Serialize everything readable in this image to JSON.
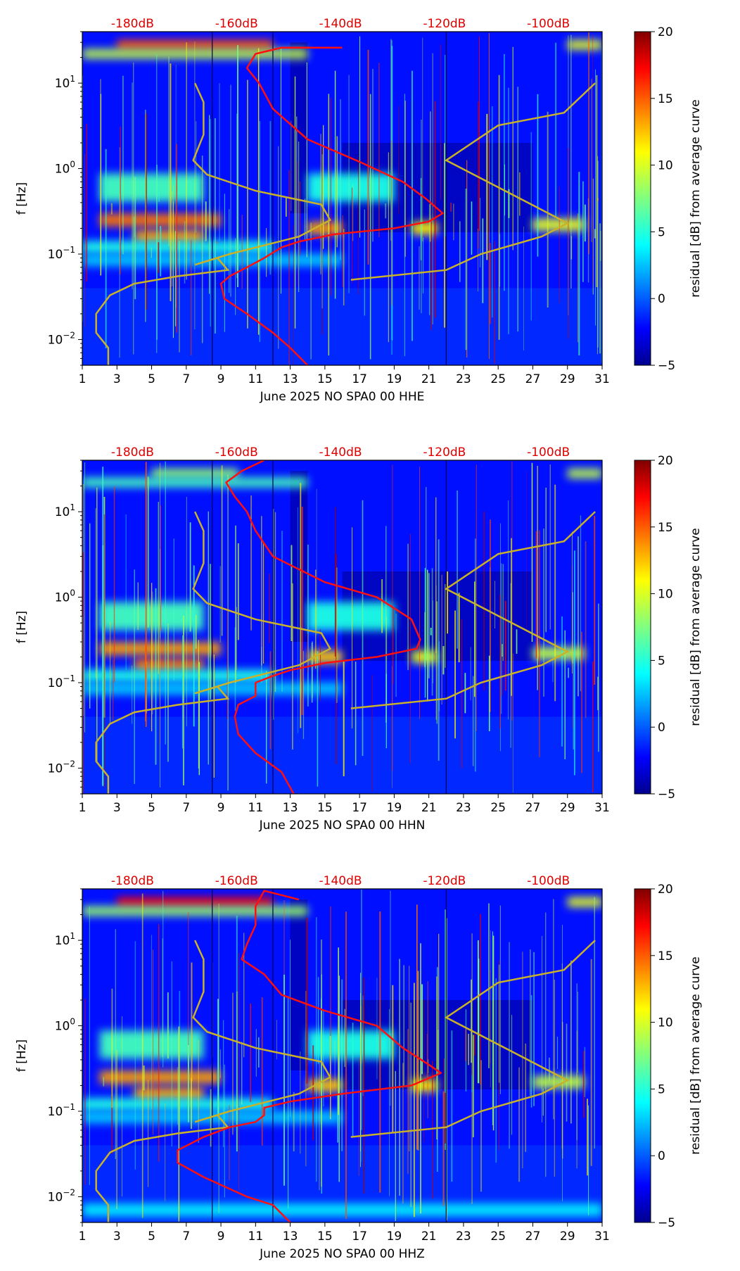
{
  "chart_data": [
    {
      "type": "heatmap",
      "title": "",
      "xlabel": "June 2025 NO SPA0 00 HHE",
      "ylabel": "f [Hz]",
      "colorbar_label": "residual [dB] from average curve",
      "colorbar_range": [
        -5,
        20
      ],
      "colorbar_ticks": [
        {
          "v": -5,
          "label": "−5"
        },
        {
          "v": 0,
          "label": "0"
        },
        {
          "v": 5,
          "label": "5"
        },
        {
          "v": 10,
          "label": "10"
        },
        {
          "v": 15,
          "label": "15"
        },
        {
          "v": 20,
          "label": "20"
        }
      ],
      "xlim": [
        1,
        31
      ],
      "x_ticks": [
        "1",
        "3",
        "5",
        "7",
        "9",
        "11",
        "13",
        "15",
        "17",
        "19",
        "21",
        "23",
        "25",
        "27",
        "29",
        "31"
      ],
      "ylim_hz": [
        0.005,
        40
      ],
      "y_ticks": [
        {
          "e": -2,
          "label": "10"
        },
        {
          "e": -1,
          "label": "10"
        },
        {
          "e": 0,
          "label": "10"
        },
        {
          "e": 1,
          "label": "10"
        }
      ],
      "db_scale": [
        "-180dB",
        "-160dB",
        "-140dB",
        "-120dB",
        "-100dB"
      ],
      "red_curve": [
        [
          16.0,
          26
        ],
        [
          12.5,
          26
        ],
        [
          11.0,
          22
        ],
        [
          10.5,
          15
        ],
        [
          11.2,
          10
        ],
        [
          12,
          5
        ],
        [
          14,
          2.2
        ],
        [
          17,
          1.2
        ],
        [
          19.5,
          0.7
        ],
        [
          20.8,
          0.45
        ],
        [
          21.8,
          0.3
        ],
        [
          21,
          0.24
        ],
        [
          19,
          0.2
        ],
        [
          15.5,
          0.17
        ],
        [
          13.5,
          0.14
        ],
        [
          12.5,
          0.12
        ],
        [
          11.5,
          0.09
        ],
        [
          10.5,
          0.07
        ],
        [
          9.5,
          0.055
        ],
        [
          9,
          0.045
        ],
        [
          9.2,
          0.03
        ],
        [
          10.5,
          0.02
        ],
        [
          12,
          0.012
        ],
        [
          13,
          0.008
        ],
        [
          14,
          0.005
        ]
      ],
      "yellow_curve": [
        [
          7.5,
          10
        ],
        [
          8.0,
          6
        ],
        [
          8.0,
          2.5
        ],
        [
          7.4,
          1.25
        ],
        [
          8.2,
          0.85
        ],
        [
          11,
          0.55
        ],
        [
          14.8,
          0.38
        ],
        [
          15.3,
          0.25
        ],
        [
          13.5,
          0.16
        ],
        [
          9.5,
          0.1
        ],
        [
          7.5,
          0.075
        ],
        [
          8.8,
          0.09
        ],
        [
          9.4,
          0.065
        ],
        [
          6.5,
          0.055
        ],
        [
          4,
          0.045
        ],
        [
          2.6,
          0.033
        ],
        [
          1.8,
          0.02
        ],
        [
          1.8,
          0.012
        ],
        [
          2.5,
          0.008
        ],
        [
          2.5,
          0.005
        ]
      ],
      "yellow_curve_2": [
        [
          16.5,
          0.05
        ],
        [
          22,
          0.065
        ],
        [
          24,
          0.1
        ],
        [
          27.5,
          0.16
        ],
        [
          29,
          0.23
        ],
        [
          22,
          1.25
        ],
        [
          25,
          3.2
        ],
        [
          28.8,
          4.5
        ],
        [
          30.6,
          10
        ]
      ],
      "bands": [
        {
          "f": 0.25,
          "x0": 2,
          "x1": 9,
          "level": 14
        },
        {
          "f": 0.2,
          "x0": 14,
          "x1": 16,
          "level": 13
        },
        {
          "f": 0.2,
          "x0": 20,
          "x1": 21.5,
          "level": 11
        },
        {
          "f": 0.22,
          "x0": 27,
          "x1": 30,
          "level": 10
        },
        {
          "f": 0.16,
          "x0": 4,
          "x1": 8,
          "level": 13
        },
        {
          "f": 0.6,
          "x0": 2,
          "x1": 8,
          "level": 6
        },
        {
          "f": 0.6,
          "x0": 14,
          "x1": 19,
          "level": 5
        },
        {
          "f": 0.12,
          "x0": 1,
          "x1": 12,
          "level": 5
        },
        {
          "f": 0.085,
          "x0": 1,
          "x1": 16,
          "level": 3
        },
        {
          "f": 28,
          "x0": 3,
          "x1": 12,
          "level": 15
        },
        {
          "f": 22,
          "x0": 1,
          "x1": 14,
          "level": 9
        },
        {
          "f": 28,
          "x0": 29,
          "x1": 31,
          "level": 10
        }
      ]
    },
    {
      "type": "heatmap",
      "title": "",
      "xlabel": "June 2025 NO SPA0 00 HHN",
      "ylabel": "f [Hz]",
      "colorbar_label": "residual [dB] from average curve",
      "colorbar_range": [
        -5,
        20
      ],
      "colorbar_ticks": [
        {
          "v": -5,
          "label": "−5"
        },
        {
          "v": 0,
          "label": "0"
        },
        {
          "v": 5,
          "label": "5"
        },
        {
          "v": 10,
          "label": "10"
        },
        {
          "v": 15,
          "label": "15"
        },
        {
          "v": 20,
          "label": "20"
        }
      ],
      "xlim": [
        1,
        31
      ],
      "x_ticks": [
        "1",
        "3",
        "5",
        "7",
        "9",
        "11",
        "13",
        "15",
        "17",
        "19",
        "21",
        "23",
        "25",
        "27",
        "29",
        "31"
      ],
      "ylim_hz": [
        0.005,
        40
      ],
      "y_ticks": [
        {
          "e": -2,
          "label": "10"
        },
        {
          "e": -1,
          "label": "10"
        },
        {
          "e": 0,
          "label": "10"
        },
        {
          "e": 1,
          "label": "10"
        }
      ],
      "db_scale": [
        "-180dB",
        "-160dB",
        "-140dB",
        "-120dB",
        "-100dB"
      ],
      "red_curve": [
        [
          11.5,
          40
        ],
        [
          10.2,
          30
        ],
        [
          9.3,
          22
        ],
        [
          9.8,
          15
        ],
        [
          10.5,
          10
        ],
        [
          11,
          6
        ],
        [
          12,
          3
        ],
        [
          15,
          1.5
        ],
        [
          18,
          1.0
        ],
        [
          20,
          0.55
        ],
        [
          20.5,
          0.32
        ],
        [
          20.3,
          0.25
        ],
        [
          18,
          0.2
        ],
        [
          15,
          0.17
        ],
        [
          13,
          0.14
        ],
        [
          12,
          0.12
        ],
        [
          11,
          0.1
        ],
        [
          11,
          0.07
        ],
        [
          10,
          0.055
        ],
        [
          9.8,
          0.04
        ],
        [
          10,
          0.025
        ],
        [
          11,
          0.015
        ],
        [
          12.5,
          0.009
        ],
        [
          13.2,
          0.005
        ]
      ],
      "yellow_curve": [
        [
          7.5,
          10
        ],
        [
          8.0,
          6
        ],
        [
          8.0,
          2.5
        ],
        [
          7.4,
          1.25
        ],
        [
          8.2,
          0.85
        ],
        [
          11,
          0.55
        ],
        [
          14.8,
          0.38
        ],
        [
          15.3,
          0.25
        ],
        [
          13.5,
          0.16
        ],
        [
          9.5,
          0.1
        ],
        [
          7.5,
          0.075
        ],
        [
          8.8,
          0.09
        ],
        [
          9.4,
          0.065
        ],
        [
          6.5,
          0.055
        ],
        [
          4,
          0.045
        ],
        [
          2.6,
          0.033
        ],
        [
          1.8,
          0.02
        ],
        [
          1.8,
          0.012
        ],
        [
          2.5,
          0.008
        ],
        [
          2.5,
          0.005
        ]
      ],
      "yellow_curve_2": [
        [
          16.5,
          0.05
        ],
        [
          22,
          0.065
        ],
        [
          24,
          0.1
        ],
        [
          27.5,
          0.16
        ],
        [
          29,
          0.23
        ],
        [
          22,
          1.25
        ],
        [
          25,
          3.2
        ],
        [
          28.8,
          4.5
        ],
        [
          30.6,
          10
        ]
      ],
      "bands": [
        {
          "f": 0.25,
          "x0": 2,
          "x1": 9,
          "level": 13
        },
        {
          "f": 0.2,
          "x0": 14,
          "x1": 16,
          "level": 12
        },
        {
          "f": 0.2,
          "x0": 20,
          "x1": 21.5,
          "level": 10
        },
        {
          "f": 0.22,
          "x0": 27,
          "x1": 30,
          "level": 9
        },
        {
          "f": 0.16,
          "x0": 4,
          "x1": 8,
          "level": 14
        },
        {
          "f": 0.6,
          "x0": 2,
          "x1": 8,
          "level": 6
        },
        {
          "f": 0.6,
          "x0": 14,
          "x1": 19,
          "level": 5
        },
        {
          "f": 0.12,
          "x0": 1,
          "x1": 12,
          "level": 5
        },
        {
          "f": 0.085,
          "x0": 1,
          "x1": 16,
          "level": 3
        },
        {
          "f": 28,
          "x0": 5,
          "x1": 10,
          "level": 8
        },
        {
          "f": 22,
          "x0": 1,
          "x1": 14,
          "level": 6
        },
        {
          "f": 28,
          "x0": 29,
          "x1": 31,
          "level": 9
        }
      ]
    },
    {
      "type": "heatmap",
      "title": "",
      "xlabel": "June 2025 NO SPA0 00 HHZ",
      "ylabel": "f [Hz]",
      "colorbar_label": "residual [dB] from average curve",
      "colorbar_range": [
        -5,
        20
      ],
      "colorbar_ticks": [
        {
          "v": -5,
          "label": "−5"
        },
        {
          "v": 0,
          "label": "0"
        },
        {
          "v": 5,
          "label": "5"
        },
        {
          "v": 10,
          "label": "10"
        },
        {
          "v": 15,
          "label": "15"
        },
        {
          "v": 20,
          "label": "20"
        }
      ],
      "xlim": [
        1,
        31
      ],
      "x_ticks": [
        "1",
        "3",
        "5",
        "7",
        "9",
        "11",
        "13",
        "15",
        "17",
        "19",
        "21",
        "23",
        "25",
        "27",
        "29",
        "31"
      ],
      "ylim_hz": [
        0.005,
        40
      ],
      "y_ticks": [
        {
          "e": -2,
          "label": "10"
        },
        {
          "e": -1,
          "label": "10"
        },
        {
          "e": 0,
          "label": "10"
        },
        {
          "e": 1,
          "label": "10"
        }
      ],
      "db_scale": [
        "-180dB",
        "-160dB",
        "-140dB",
        "-120dB",
        "-100dB"
      ],
      "red_curve": [
        [
          13.5,
          30
        ],
        [
          11.5,
          38
        ],
        [
          11,
          25
        ],
        [
          11,
          15
        ],
        [
          10.5,
          9
        ],
        [
          10.2,
          6
        ],
        [
          11.5,
          4
        ],
        [
          12.5,
          2.3
        ],
        [
          15,
          1.5
        ],
        [
          18,
          1.0
        ],
        [
          19.5,
          0.55
        ],
        [
          21,
          0.35
        ],
        [
          21.7,
          0.28
        ],
        [
          20,
          0.2
        ],
        [
          16,
          0.16
        ],
        [
          13,
          0.13
        ],
        [
          11.5,
          0.11
        ],
        [
          11.5,
          0.09
        ],
        [
          11,
          0.075
        ],
        [
          9.5,
          0.065
        ],
        [
          8,
          0.05
        ],
        [
          6.5,
          0.035
        ],
        [
          6.5,
          0.025
        ],
        [
          8,
          0.017
        ],
        [
          10.5,
          0.01
        ],
        [
          12,
          0.008
        ],
        [
          13,
          0.005
        ]
      ],
      "yellow_curve": [
        [
          7.5,
          10
        ],
        [
          8.0,
          6
        ],
        [
          8.0,
          2.5
        ],
        [
          7.4,
          1.25
        ],
        [
          8.2,
          0.85
        ],
        [
          11,
          0.55
        ],
        [
          14.8,
          0.38
        ],
        [
          15.3,
          0.25
        ],
        [
          13.5,
          0.16
        ],
        [
          9.5,
          0.1
        ],
        [
          7.5,
          0.075
        ],
        [
          8.8,
          0.09
        ],
        [
          9.4,
          0.065
        ],
        [
          6.5,
          0.055
        ],
        [
          4,
          0.045
        ],
        [
          2.6,
          0.033
        ],
        [
          1.8,
          0.02
        ],
        [
          1.8,
          0.012
        ],
        [
          2.5,
          0.008
        ],
        [
          2.5,
          0.005
        ]
      ],
      "yellow_curve_2": [
        [
          16.5,
          0.05
        ],
        [
          22,
          0.065
        ],
        [
          24,
          0.1
        ],
        [
          27.5,
          0.16
        ],
        [
          29,
          0.23
        ],
        [
          22,
          1.25
        ],
        [
          25,
          3.2
        ],
        [
          28.8,
          4.5
        ],
        [
          30.6,
          10
        ]
      ],
      "bands": [
        {
          "f": 0.25,
          "x0": 2,
          "x1": 9,
          "level": 13
        },
        {
          "f": 0.2,
          "x0": 14,
          "x1": 16,
          "level": 12
        },
        {
          "f": 0.2,
          "x0": 20,
          "x1": 21.5,
          "level": 11
        },
        {
          "f": 0.22,
          "x0": 27,
          "x1": 30,
          "level": 9
        },
        {
          "f": 0.16,
          "x0": 4,
          "x1": 8,
          "level": 13
        },
        {
          "f": 0.6,
          "x0": 2,
          "x1": 8,
          "level": 6
        },
        {
          "f": 0.6,
          "x0": 14,
          "x1": 19,
          "level": 5
        },
        {
          "f": 0.12,
          "x0": 1,
          "x1": 12,
          "level": 5
        },
        {
          "f": 0.085,
          "x0": 1,
          "x1": 16,
          "level": 3
        },
        {
          "f": 28,
          "x0": 3,
          "x1": 12,
          "level": 17
        },
        {
          "f": 22,
          "x0": 1,
          "x1": 14,
          "level": 8
        },
        {
          "f": 28,
          "x0": 29,
          "x1": 31,
          "level": 10
        },
        {
          "f": 0.007,
          "x0": 1,
          "x1": 31,
          "level": 4
        }
      ]
    }
  ],
  "colors": {
    "red_curve": "#ff1010",
    "yellow_curve": "#c9b12a",
    "db_label": "#e00000"
  }
}
